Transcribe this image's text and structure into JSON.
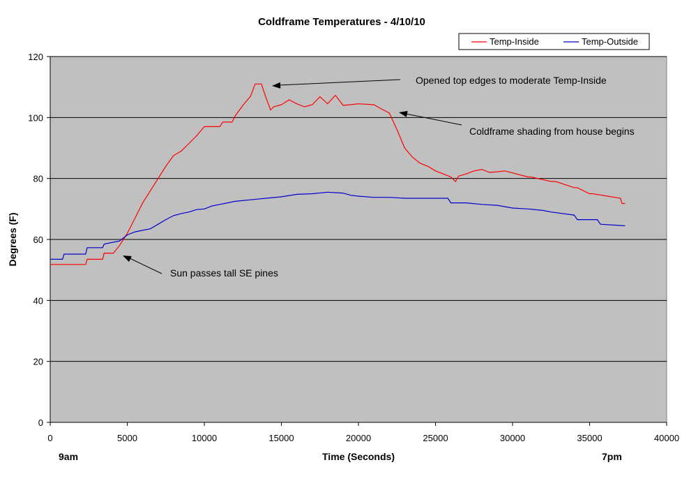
{
  "chart_data": {
    "type": "line",
    "title": "Coldframe Temperatures - 4/10/10",
    "xlabel": "Time (Seconds)",
    "ylabel": "Degrees (F)",
    "xlim": [
      0,
      40000
    ],
    "ylim": [
      0,
      120
    ],
    "xticks": [
      0,
      5000,
      10000,
      15000,
      20000,
      25000,
      30000,
      35000,
      40000
    ],
    "yticks": [
      0,
      20,
      40,
      60,
      80,
      100,
      120
    ],
    "grid": "horizontal",
    "legend_position": "top-right",
    "colors": {
      "plot_bg": "#c0c0c0",
      "temp_inside": "#ff0000",
      "temp_outside": "#0000cc"
    },
    "series": [
      {
        "name": "Temp-Inside",
        "color": "#ff0000",
        "x": [
          0,
          2300,
          2400,
          3400,
          3500,
          4100,
          4500,
          5000,
          5500,
          6000,
          6500,
          7000,
          7500,
          8000,
          8500,
          9000,
          9500,
          10000,
          11000,
          11200,
          11800,
          12000,
          12500,
          13000,
          13300,
          13700,
          14000,
          14300,
          14500,
          15000,
          15500,
          16000,
          16500,
          17000,
          17500,
          18000,
          18500,
          19000,
          19500,
          20000,
          21000,
          21500,
          22000,
          22500,
          23000,
          23500,
          24000,
          24500,
          25000,
          26000,
          26300,
          26500,
          27000,
          27500,
          28000,
          28500,
          29000,
          29500,
          31000,
          31200,
          32500,
          32800,
          34000,
          34200,
          35000,
          35200,
          37000,
          37100,
          37300
        ],
        "y": [
          51.8,
          51.8,
          53.5,
          53.5,
          55.5,
          55.5,
          58,
          62,
          67,
          72,
          76,
          80,
          84,
          87.5,
          89,
          91.5,
          94,
          97,
          97,
          98.5,
          98.5,
          100.5,
          104,
          107,
          111,
          111,
          106.5,
          102.5,
          103.5,
          104.2,
          105.8,
          104.5,
          103.5,
          104.2,
          106.8,
          104.5,
          107.3,
          104,
          104.2,
          104.5,
          104.2,
          102.8,
          101.5,
          96,
          90,
          87,
          85,
          84,
          82.5,
          80.5,
          79,
          80.8,
          81.5,
          82.5,
          83,
          82,
          82.2,
          82.5,
          80.5,
          80.5,
          79,
          79,
          77,
          77,
          75,
          75,
          73.5,
          71.8,
          71.8
        ]
      },
      {
        "name": "Temp-Outside",
        "color": "#0000cc",
        "x": [
          0,
          800,
          900,
          2300,
          2400,
          3400,
          3500,
          4000,
          4500,
          5000,
          5500,
          6000,
          6500,
          7000,
          7500,
          8000,
          8500,
          9000,
          9500,
          10000,
          10500,
          11000,
          11500,
          12000,
          13000,
          14000,
          15000,
          16000,
          17000,
          18000,
          19000,
          19500,
          20000,
          21000,
          22000,
          23000,
          25000,
          25800,
          26000,
          27000,
          28000,
          29000,
          30000,
          31000,
          32000,
          32500,
          34000,
          34200,
          35500,
          35700,
          37300
        ],
        "y": [
          53.5,
          53.5,
          55.2,
          55.2,
          57.3,
          57.3,
          58.5,
          59,
          59.5,
          61.5,
          62.5,
          63,
          63.5,
          65,
          66.5,
          67.8,
          68.5,
          69,
          69.8,
          70,
          71,
          71.5,
          72,
          72.5,
          73,
          73.5,
          74,
          74.8,
          75,
          75.5,
          75.2,
          74.5,
          74.2,
          73.8,
          73.8,
          73.5,
          73.5,
          73.5,
          72,
          72,
          71.5,
          71.2,
          70.3,
          70,
          69.5,
          69,
          68,
          66.5,
          66.5,
          65,
          64.5
        ]
      }
    ],
    "annotations": [
      {
        "text": "Opened top edges to moderate Temp-Inside",
        "target": [
          14300,
          111
        ]
      },
      {
        "text": "Coldframe shading from house begins",
        "target": [
          22700,
          100
        ]
      },
      {
        "text": "Sun passes tall SE pines",
        "target": [
          4700,
          54.5
        ]
      }
    ],
    "x_extra_labels": [
      "9am",
      "7pm"
    ]
  }
}
